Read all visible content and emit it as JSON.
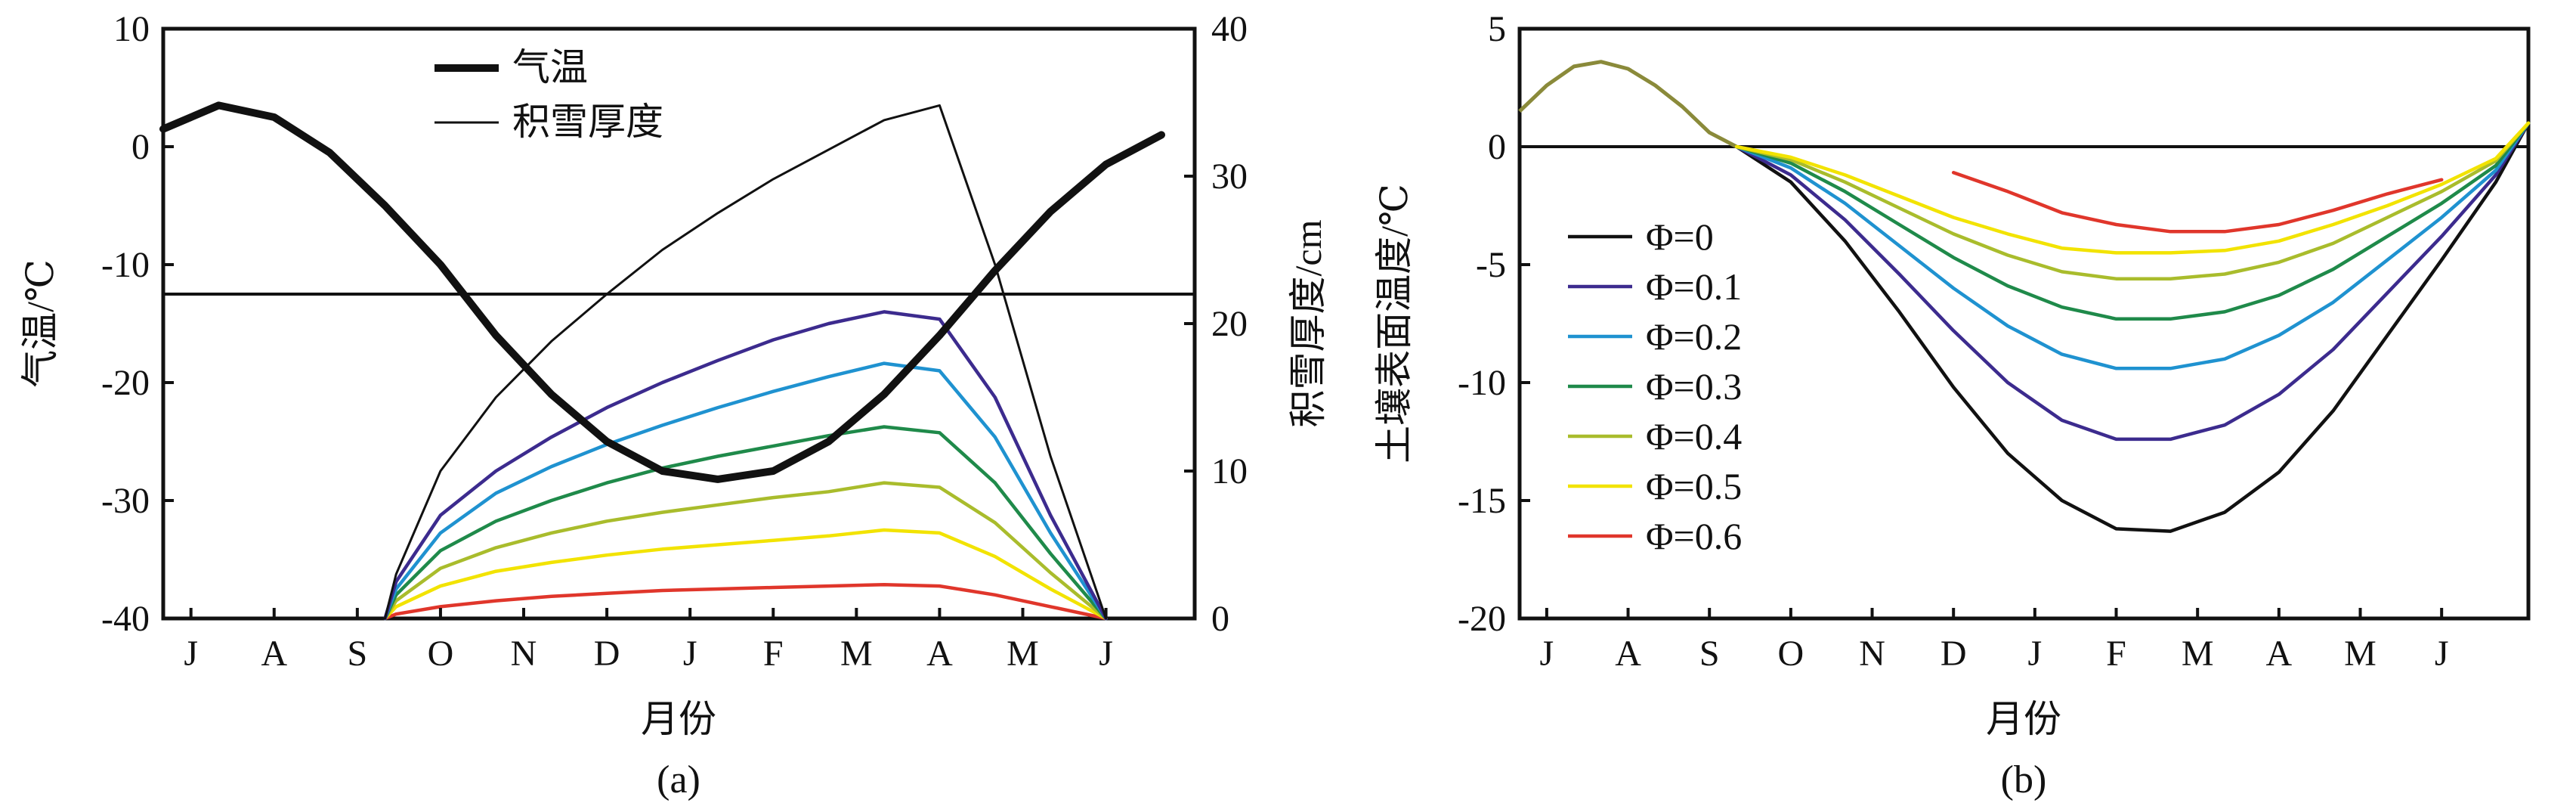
{
  "chart_data": [
    {
      "panel": "(a)",
      "type": "line",
      "xlabel": "月份",
      "x_ticks": [
        "J",
        "A",
        "S",
        "O",
        "N",
        "D",
        "J",
        "F",
        "M",
        "A",
        "M",
        "J"
      ],
      "y_left": {
        "label": "气温/℃",
        "ylim": [
          -40,
          10
        ],
        "ticks": [
          "10",
          "0",
          "-10",
          "-20",
          "-30",
          "-40"
        ]
      },
      "y_right": {
        "label": "积雪厚度/cm",
        "ylim": [
          0,
          40
        ],
        "ticks": [
          "40",
          "30",
          "20",
          "10",
          "0"
        ]
      },
      "legend": [
        "气温",
        "积雪厚度"
      ],
      "reference_line": {
        "axis": "left",
        "y": -12.5
      },
      "series": [
        {
          "name": "气温",
          "axis": "left",
          "color": "#111111",
          "style": "thick",
          "points": [
            [
              0,
              1.5
            ],
            [
              0.5,
              3.5
            ],
            [
              1,
              2.5
            ],
            [
              1.5,
              -0.5
            ],
            [
              2,
              -5
            ],
            [
              2.5,
              -10
            ],
            [
              3,
              -16
            ],
            [
              3.5,
              -21
            ],
            [
              4,
              -25
            ],
            [
              4.5,
              -27.5
            ],
            [
              5,
              -28.2
            ],
            [
              5.5,
              -27.5
            ],
            [
              6,
              -25
            ],
            [
              6.5,
              -21
            ],
            [
              7,
              -16
            ],
            [
              7.5,
              -10.5
            ],
            [
              8,
              -5.5
            ],
            [
              8.5,
              -1.5
            ],
            [
              9,
              1
            ]
          ]
        },
        {
          "name": "积雪厚度",
          "axis": "right",
          "color": "#111111",
          "style": "thin",
          "points": [
            [
              0,
              0
            ],
            [
              2,
              0
            ],
            [
              2.1,
              3
            ],
            [
              2.5,
              10
            ],
            [
              3,
              15
            ],
            [
              3.5,
              18.8
            ],
            [
              4,
              22
            ],
            [
              4.5,
              25
            ],
            [
              5,
              27.5
            ],
            [
              5.5,
              29.8
            ],
            [
              6,
              31.8
            ],
            [
              6.5,
              33.8
            ],
            [
              7,
              34.8
            ],
            [
              7.5,
              24
            ],
            [
              8,
              11
            ],
            [
              8.5,
              0
            ]
          ]
        },
        {
          "color": "#3c2b8e",
          "axis": "right",
          "points": [
            [
              2,
              0
            ],
            [
              2.1,
              2.5
            ],
            [
              2.5,
              7
            ],
            [
              3,
              10
            ],
            [
              3.5,
              12.3
            ],
            [
              4,
              14.3
            ],
            [
              4.5,
              16
            ],
            [
              5,
              17.5
            ],
            [
              5.5,
              18.9
            ],
            [
              6,
              20
            ],
            [
              6.5,
              20.8
            ],
            [
              7,
              20.3
            ],
            [
              7.5,
              15
            ],
            [
              8,
              7
            ],
            [
              8.5,
              0
            ]
          ]
        },
        {
          "color": "#1f92d0",
          "axis": "right",
          "points": [
            [
              2,
              0
            ],
            [
              2.1,
              2
            ],
            [
              2.5,
              5.8
            ],
            [
              3,
              8.5
            ],
            [
              3.5,
              10.3
            ],
            [
              4,
              11.8
            ],
            [
              4.5,
              13.1
            ],
            [
              5,
              14.3
            ],
            [
              5.5,
              15.4
            ],
            [
              6,
              16.4
            ],
            [
              6.5,
              17.3
            ],
            [
              7,
              16.8
            ],
            [
              7.5,
              12.3
            ],
            [
              8,
              5.8
            ],
            [
              8.5,
              0
            ]
          ]
        },
        {
          "color": "#1f8a4a",
          "axis": "right",
          "points": [
            [
              2,
              0
            ],
            [
              2.1,
              1.6
            ],
            [
              2.5,
              4.6
            ],
            [
              3,
              6.6
            ],
            [
              3.5,
              8
            ],
            [
              4,
              9.2
            ],
            [
              4.5,
              10.2
            ],
            [
              5,
              11
            ],
            [
              5.5,
              11.7
            ],
            [
              6,
              12.4
            ],
            [
              6.5,
              13
            ],
            [
              7,
              12.6
            ],
            [
              7.5,
              9.2
            ],
            [
              8,
              4.4
            ],
            [
              8.5,
              0
            ]
          ]
        },
        {
          "color": "#a9bc2c",
          "axis": "right",
          "points": [
            [
              2,
              0
            ],
            [
              2.1,
              1.2
            ],
            [
              2.5,
              3.4
            ],
            [
              3,
              4.8
            ],
            [
              3.5,
              5.8
            ],
            [
              4,
              6.6
            ],
            [
              4.5,
              7.2
            ],
            [
              5,
              7.7
            ],
            [
              5.5,
              8.2
            ],
            [
              6,
              8.6
            ],
            [
              6.5,
              9.2
            ],
            [
              7,
              8.9
            ],
            [
              7.5,
              6.5
            ],
            [
              8,
              3.1
            ],
            [
              8.5,
              0
            ]
          ]
        },
        {
          "color": "#f2e300",
          "axis": "right",
          "points": [
            [
              2,
              0
            ],
            [
              2.1,
              0.8
            ],
            [
              2.5,
              2.2
            ],
            [
              3,
              3.2
            ],
            [
              3.5,
              3.8
            ],
            [
              4,
              4.3
            ],
            [
              4.5,
              4.7
            ],
            [
              5,
              5
            ],
            [
              5.5,
              5.3
            ],
            [
              6,
              5.6
            ],
            [
              6.5,
              6
            ],
            [
              7,
              5.8
            ],
            [
              7.5,
              4.2
            ],
            [
              8,
              2
            ],
            [
              8.5,
              0
            ]
          ]
        },
        {
          "color": "#e0362b",
          "axis": "right",
          "points": [
            [
              2,
              0
            ],
            [
              2.1,
              0.3
            ],
            [
              2.5,
              0.8
            ],
            [
              3,
              1.2
            ],
            [
              3.5,
              1.5
            ],
            [
              4,
              1.7
            ],
            [
              4.5,
              1.9
            ],
            [
              5,
              2
            ],
            [
              5.5,
              2.1
            ],
            [
              6,
              2.2
            ],
            [
              6.5,
              2.3
            ],
            [
              7,
              2.2
            ],
            [
              7.5,
              1.6
            ],
            [
              8,
              0.8
            ],
            [
              8.5,
              0
            ]
          ]
        }
      ]
    },
    {
      "panel": "(b)",
      "type": "line",
      "xlabel": "月份",
      "x_ticks": [
        "J",
        "A",
        "S",
        "O",
        "N",
        "D",
        "J",
        "F",
        "M",
        "A",
        "M",
        "J"
      ],
      "y_left": {
        "label": "土壤表面温度/℃",
        "ylim": [
          -20,
          5
        ],
        "ticks": [
          "5",
          "0",
          "-5",
          "-10",
          "-15",
          "-20"
        ]
      },
      "reference_line": {
        "axis": "left",
        "y": 0
      },
      "summer_curve": {
        "color": "#8a8a3a",
        "points": [
          [
            0,
            1.5
          ],
          [
            0.25,
            2.6
          ],
          [
            0.5,
            3.4
          ],
          [
            0.75,
            3.6
          ],
          [
            1,
            3.3
          ],
          [
            1.25,
            2.6
          ],
          [
            1.5,
            1.7
          ],
          [
            1.75,
            0.6
          ],
          [
            2,
            0
          ]
        ]
      },
      "series": [
        {
          "name": "Φ=0",
          "color": "#111111",
          "points": [
            [
              2,
              0
            ],
            [
              2.5,
              -1.5
            ],
            [
              3,
              -4
            ],
            [
              3.5,
              -7
            ],
            [
              4,
              -10.2
            ],
            [
              4.5,
              -13
            ],
            [
              5,
              -15
            ],
            [
              5.5,
              -16.2
            ],
            [
              6,
              -16.3
            ],
            [
              6.5,
              -15.5
            ],
            [
              7,
              -13.8
            ],
            [
              7.5,
              -11.2
            ],
            [
              8,
              -8
            ],
            [
              8.5,
              -4.8
            ],
            [
              9,
              -1.5
            ],
            [
              9.3,
              1
            ]
          ]
        },
        {
          "name": "Φ=0.1",
          "color": "#3c2b8e",
          "points": [
            [
              2,
              0
            ],
            [
              2.5,
              -1.2
            ],
            [
              3,
              -3.1
            ],
            [
              3.5,
              -5.4
            ],
            [
              4,
              -7.8
            ],
            [
              4.5,
              -10
            ],
            [
              5,
              -11.6
            ],
            [
              5.5,
              -12.4
            ],
            [
              6,
              -12.4
            ],
            [
              6.5,
              -11.8
            ],
            [
              7,
              -10.5
            ],
            [
              7.5,
              -8.6
            ],
            [
              8,
              -6.2
            ],
            [
              8.5,
              -3.8
            ],
            [
              9,
              -1.2
            ],
            [
              9.3,
              1
            ]
          ]
        },
        {
          "name": "Φ=0.2",
          "color": "#1f92d0",
          "points": [
            [
              2,
              0
            ],
            [
              2.5,
              -0.9
            ],
            [
              3,
              -2.4
            ],
            [
              3.5,
              -4.2
            ],
            [
              4,
              -6
            ],
            [
              4.5,
              -7.6
            ],
            [
              5,
              -8.8
            ],
            [
              5.5,
              -9.4
            ],
            [
              6,
              -9.4
            ],
            [
              6.5,
              -9
            ],
            [
              7,
              -8
            ],
            [
              7.5,
              -6.6
            ],
            [
              8,
              -4.8
            ],
            [
              8.5,
              -3
            ],
            [
              9,
              -1
            ],
            [
              9.3,
              1
            ]
          ]
        },
        {
          "name": "Φ=0.3",
          "color": "#1f8a4a",
          "points": [
            [
              2,
              0
            ],
            [
              2.5,
              -0.7
            ],
            [
              3,
              -1.9
            ],
            [
              3.5,
              -3.3
            ],
            [
              4,
              -4.7
            ],
            [
              4.5,
              -5.9
            ],
            [
              5,
              -6.8
            ],
            [
              5.5,
              -7.3
            ],
            [
              6,
              -7.3
            ],
            [
              6.5,
              -7
            ],
            [
              7,
              -6.3
            ],
            [
              7.5,
              -5.2
            ],
            [
              8,
              -3.8
            ],
            [
              8.5,
              -2.4
            ],
            [
              9,
              -0.8
            ],
            [
              9.3,
              1
            ]
          ]
        },
        {
          "name": "Φ=0.4",
          "color": "#a9bc2c",
          "points": [
            [
              2,
              0
            ],
            [
              2.5,
              -0.55
            ],
            [
              3,
              -1.5
            ],
            [
              3.5,
              -2.6
            ],
            [
              4,
              -3.7
            ],
            [
              4.5,
              -4.6
            ],
            [
              5,
              -5.3
            ],
            [
              5.5,
              -5.6
            ],
            [
              6,
              -5.6
            ],
            [
              6.5,
              -5.4
            ],
            [
              7,
              -4.9
            ],
            [
              7.5,
              -4.1
            ],
            [
              8,
              -3
            ],
            [
              8.5,
              -1.9
            ],
            [
              9,
              -0.6
            ],
            [
              9.3,
              1
            ]
          ]
        },
        {
          "name": "Φ=0.5",
          "color": "#f2e300",
          "points": [
            [
              2,
              0
            ],
            [
              2.5,
              -0.45
            ],
            [
              3,
              -1.2
            ],
            [
              3.5,
              -2.1
            ],
            [
              4,
              -3
            ],
            [
              4.5,
              -3.7
            ],
            [
              5,
              -4.3
            ],
            [
              5.5,
              -4.5
            ],
            [
              6,
              -4.5
            ],
            [
              6.5,
              -4.4
            ],
            [
              7,
              -4
            ],
            [
              7.5,
              -3.3
            ],
            [
              8,
              -2.5
            ],
            [
              8.5,
              -1.6
            ],
            [
              9,
              -0.5
            ],
            [
              9.3,
              1
            ]
          ]
        },
        {
          "name": "Φ=0.6",
          "color": "#e0362b",
          "points": [
            [
              4,
              -1.1
            ],
            [
              4.5,
              -1.9
            ],
            [
              5,
              -2.8
            ],
            [
              5.5,
              -3.3
            ],
            [
              6,
              -3.6
            ],
            [
              6.5,
              -3.6
            ],
            [
              7,
              -3.3
            ],
            [
              7.5,
              -2.7
            ],
            [
              8,
              -2
            ],
            [
              8.5,
              -1.4
            ]
          ]
        }
      ]
    }
  ]
}
